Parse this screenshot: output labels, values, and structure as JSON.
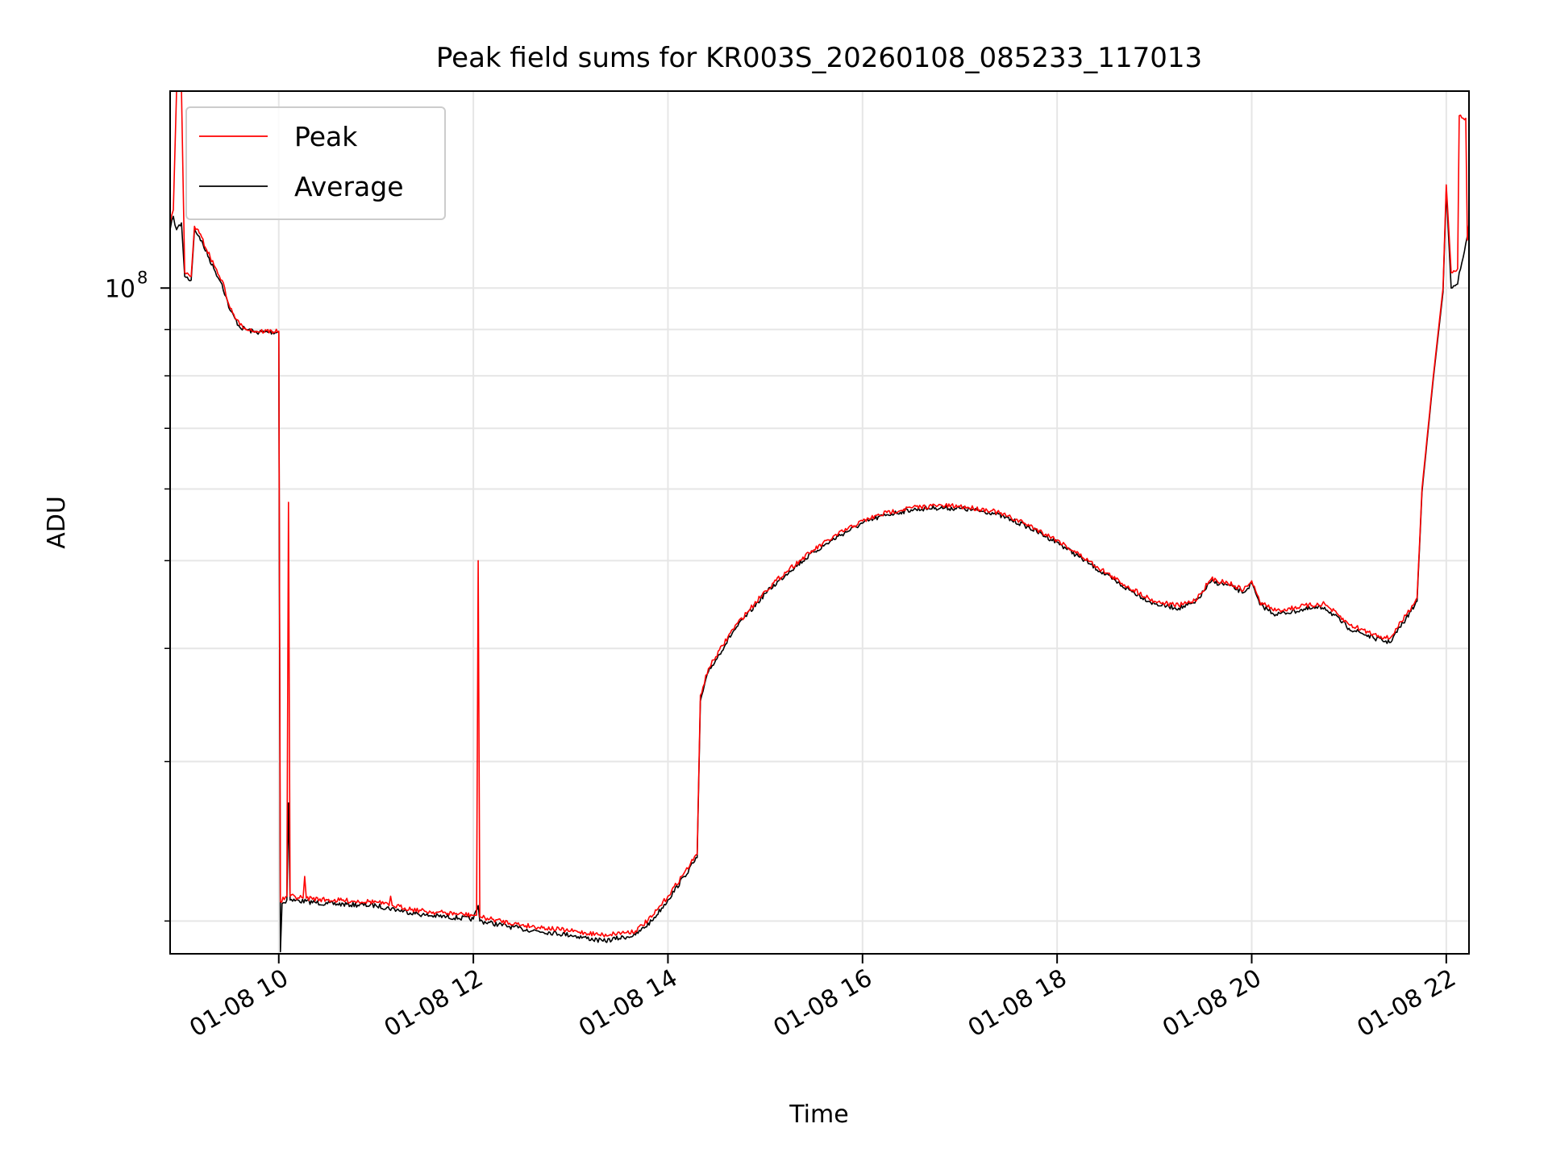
{
  "chart_data": {
    "type": "line",
    "title": "Peak field sums for KR003S_20260108_085233_117013",
    "xlabel": "Time",
    "ylabel": "ADU",
    "yscale": "log",
    "ylim": [
      18400000,
      165000000
    ],
    "y_tick_label": {
      "value": 100000000,
      "base": "10",
      "exp": "8"
    },
    "y_minor_ticks": [
      20000000,
      30000000,
      40000000,
      50000000,
      60000000,
      70000000,
      80000000,
      90000000
    ],
    "xlim": [
      "2026-01-08 08:53",
      "2026-01-08 22:14"
    ],
    "x_ticks": [
      {
        "t": "2026-01-08 10:00",
        "label": "01-08 10"
      },
      {
        "t": "2026-01-08 12:00",
        "label": "01-08 12"
      },
      {
        "t": "2026-01-08 14:00",
        "label": "01-08 14"
      },
      {
        "t": "2026-01-08 16:00",
        "label": "01-08 16"
      },
      {
        "t": "2026-01-08 18:00",
        "label": "01-08 18"
      },
      {
        "t": "2026-01-08 20:00",
        "label": "01-08 20"
      },
      {
        "t": "2026-01-08 22:00",
        "label": "01-08 22"
      }
    ],
    "grid": true,
    "legend": {
      "position": "top-left"
    },
    "series": [
      {
        "name": "Peak",
        "color": "#ff0000",
        "points": [
          [
            "2026-01-08 08:53",
            118000000
          ],
          [
            "2026-01-08 08:55",
            122000000
          ],
          [
            "2026-01-08 08:57",
            165000000
          ],
          [
            "2026-01-08 09:00",
            165000000
          ],
          [
            "2026-01-08 09:02",
            104000000
          ],
          [
            "2026-01-08 09:06",
            103000000
          ],
          [
            "2026-01-08 09:08",
            117000000
          ],
          [
            "2026-01-08 09:11",
            115000000
          ],
          [
            "2026-01-08 09:20",
            106000000
          ],
          [
            "2026-01-08 09:25",
            102000000
          ],
          [
            "2026-01-08 09:30",
            95000000
          ],
          [
            "2026-01-08 09:36",
            91000000
          ],
          [
            "2026-01-08 09:45",
            89600000
          ],
          [
            "2026-01-08 10:00",
            89600000
          ],
          [
            "2026-01-08 10:01",
            21000000
          ],
          [
            "2026-01-08 10:05",
            21300000
          ],
          [
            "2026-01-08 10:06",
            58000000
          ],
          [
            "2026-01-08 10:07",
            21300000
          ],
          [
            "2026-01-08 10:15",
            21200000
          ],
          [
            "2026-01-08 10:16",
            22400000
          ],
          [
            "2026-01-08 10:17",
            21200000
          ],
          [
            "2026-01-08 10:30",
            21100000
          ],
          [
            "2026-01-08 11:00",
            21000000
          ],
          [
            "2026-01-08 11:08",
            20800000
          ],
          [
            "2026-01-08 11:09",
            21300000
          ],
          [
            "2026-01-08 11:10",
            20800000
          ],
          [
            "2026-01-08 11:30",
            20500000
          ],
          [
            "2026-01-08 12:00",
            20300000
          ],
          [
            "2026-01-08 12:02",
            20300000
          ],
          [
            "2026-01-08 12:03",
            50000000
          ],
          [
            "2026-01-08 12:04",
            20200000
          ],
          [
            "2026-01-08 12:30",
            19800000
          ],
          [
            "2026-01-08 13:00",
            19500000
          ],
          [
            "2026-01-08 13:20",
            19300000
          ],
          [
            "2026-01-08 13:40",
            19500000
          ],
          [
            "2026-01-08 13:50",
            20200000
          ],
          [
            "2026-01-08 14:00",
            21300000
          ],
          [
            "2026-01-08 14:10",
            22600000
          ],
          [
            "2026-01-08 14:18",
            23700000
          ],
          [
            "2026-01-08 14:20",
            35500000
          ],
          [
            "2026-01-08 14:25",
            38000000
          ],
          [
            "2026-01-08 14:40",
            42000000
          ],
          [
            "2026-01-08 15:00",
            46300000
          ],
          [
            "2026-01-08 15:15",
            49000000
          ],
          [
            "2026-01-08 15:30",
            51400000
          ],
          [
            "2026-01-08 15:45",
            53500000
          ],
          [
            "2026-01-08 16:00",
            55300000
          ],
          [
            "2026-01-08 16:15",
            56500000
          ],
          [
            "2026-01-08 16:30",
            57200000
          ],
          [
            "2026-01-08 16:45",
            57500000
          ],
          [
            "2026-01-08 17:00",
            57400000
          ],
          [
            "2026-01-08 17:20",
            56800000
          ],
          [
            "2026-01-08 17:40",
            55000000
          ],
          [
            "2026-01-08 18:00",
            52700000
          ],
          [
            "2026-01-08 18:20",
            49900000
          ],
          [
            "2026-01-08 18:40",
            47200000
          ],
          [
            "2026-01-08 19:00",
            45100000
          ],
          [
            "2026-01-08 19:15",
            44600000
          ],
          [
            "2026-01-08 19:25",
            45200000
          ],
          [
            "2026-01-08 19:35",
            47700000
          ],
          [
            "2026-01-08 19:45",
            47300000
          ],
          [
            "2026-01-08 19:55",
            46400000
          ],
          [
            "2026-01-08 20:00",
            47500000
          ],
          [
            "2026-01-08 20:05",
            45000000
          ],
          [
            "2026-01-08 20:15",
            44000000
          ],
          [
            "2026-01-08 20:30",
            44500000
          ],
          [
            "2026-01-08 20:45",
            44800000
          ],
          [
            "2026-01-08 21:00",
            42500000
          ],
          [
            "2026-01-08 21:15",
            41500000
          ],
          [
            "2026-01-08 21:25",
            41000000
          ],
          [
            "2026-01-08 21:35",
            43500000
          ],
          [
            "2026-01-08 21:42",
            45500000
          ],
          [
            "2026-01-08 21:45",
            60000000
          ],
          [
            "2026-01-08 21:52",
            80000000
          ],
          [
            "2026-01-08 21:58",
            100000000
          ],
          [
            "2026-01-08 22:00",
            130000000
          ],
          [
            "2026-01-08 22:03",
            104000000
          ],
          [
            "2026-01-08 22:07",
            105000000
          ],
          [
            "2026-01-08 22:08",
            155000000
          ],
          [
            "2026-01-08 22:12",
            154000000
          ],
          [
            "2026-01-08 22:13",
            113000000
          ],
          [
            "2026-01-08 22:14",
            118000000
          ]
        ]
      },
      {
        "name": "Average",
        "color": "#000000",
        "points": [
          [
            "2026-01-08 08:53",
            116000000
          ],
          [
            "2026-01-08 08:55",
            120000000
          ],
          [
            "2026-01-08 08:57",
            116000000
          ],
          [
            "2026-01-08 09:00",
            118000000
          ],
          [
            "2026-01-08 09:02",
            103000000
          ],
          [
            "2026-01-08 09:06",
            102000000
          ],
          [
            "2026-01-08 09:08",
            116000000
          ],
          [
            "2026-01-08 09:11",
            114000000
          ],
          [
            "2026-01-08 09:20",
            105000000
          ],
          [
            "2026-01-08 09:25",
            101000000
          ],
          [
            "2026-01-08 09:30",
            94500000
          ],
          [
            "2026-01-08 09:36",
            90500000
          ],
          [
            "2026-01-08 09:45",
            89400000
          ],
          [
            "2026-01-08 10:00",
            89400000
          ],
          [
            "2026-01-08 10:01",
            18500000
          ],
          [
            "2026-01-08 10:02",
            20900000
          ],
          [
            "2026-01-08 10:05",
            21100000
          ],
          [
            "2026-01-08 10:06",
            27000000
          ],
          [
            "2026-01-08 10:07",
            21100000
          ],
          [
            "2026-01-08 10:30",
            20900000
          ],
          [
            "2026-01-08 11:00",
            20800000
          ],
          [
            "2026-01-08 11:30",
            20300000
          ],
          [
            "2026-01-08 12:00",
            20100000
          ],
          [
            "2026-01-08 12:03",
            20800000
          ],
          [
            "2026-01-08 12:04",
            20000000
          ],
          [
            "2026-01-08 12:30",
            19600000
          ],
          [
            "2026-01-08 13:00",
            19300000
          ],
          [
            "2026-01-08 13:20",
            19000000
          ],
          [
            "2026-01-08 13:40",
            19300000
          ],
          [
            "2026-01-08 13:50",
            20000000
          ],
          [
            "2026-01-08 14:00",
            21100000
          ],
          [
            "2026-01-08 14:10",
            22400000
          ],
          [
            "2026-01-08 14:18",
            23500000
          ],
          [
            "2026-01-08 14:20",
            35000000
          ],
          [
            "2026-01-08 14:25",
            37700000
          ],
          [
            "2026-01-08 14:40",
            41700000
          ],
          [
            "2026-01-08 15:00",
            46000000
          ],
          [
            "2026-01-08 15:15",
            48700000
          ],
          [
            "2026-01-08 15:30",
            51100000
          ],
          [
            "2026-01-08 15:45",
            53200000
          ],
          [
            "2026-01-08 16:00",
            55000000
          ],
          [
            "2026-01-08 16:15",
            56200000
          ],
          [
            "2026-01-08 16:30",
            56900000
          ],
          [
            "2026-01-08 16:45",
            57200000
          ],
          [
            "2026-01-08 17:00",
            57100000
          ],
          [
            "2026-01-08 17:20",
            56500000
          ],
          [
            "2026-01-08 17:40",
            54700000
          ],
          [
            "2026-01-08 18:00",
            52400000
          ],
          [
            "2026-01-08 18:20",
            49600000
          ],
          [
            "2026-01-08 18:40",
            46900000
          ],
          [
            "2026-01-08 19:00",
            44800000
          ],
          [
            "2026-01-08 19:15",
            44300000
          ],
          [
            "2026-01-08 19:25",
            44900000
          ],
          [
            "2026-01-08 19:35",
            47400000
          ],
          [
            "2026-01-08 19:45",
            47000000
          ],
          [
            "2026-01-08 19:55",
            46100000
          ],
          [
            "2026-01-08 20:00",
            47200000
          ],
          [
            "2026-01-08 20:05",
            44700000
          ],
          [
            "2026-01-08 20:15",
            43600000
          ],
          [
            "2026-01-08 20:30",
            44100000
          ],
          [
            "2026-01-08 20:45",
            44400000
          ],
          [
            "2026-01-08 21:00",
            42100000
          ],
          [
            "2026-01-08 21:15",
            41100000
          ],
          [
            "2026-01-08 21:25",
            40600000
          ],
          [
            "2026-01-08 21:35",
            43100000
          ],
          [
            "2026-01-08 21:42",
            45100000
          ],
          [
            "2026-01-08 21:45",
            59500000
          ],
          [
            "2026-01-08 21:52",
            79500000
          ],
          [
            "2026-01-08 21:58",
            99000000
          ],
          [
            "2026-01-08 22:00",
            128000000
          ],
          [
            "2026-01-08 22:03",
            100000000
          ],
          [
            "2026-01-08 22:07",
            101000000
          ],
          [
            "2026-01-08 22:08",
            104000000
          ],
          [
            "2026-01-08 22:12",
            112000000
          ],
          [
            "2026-01-08 22:14",
            115000000
          ]
        ]
      }
    ]
  }
}
